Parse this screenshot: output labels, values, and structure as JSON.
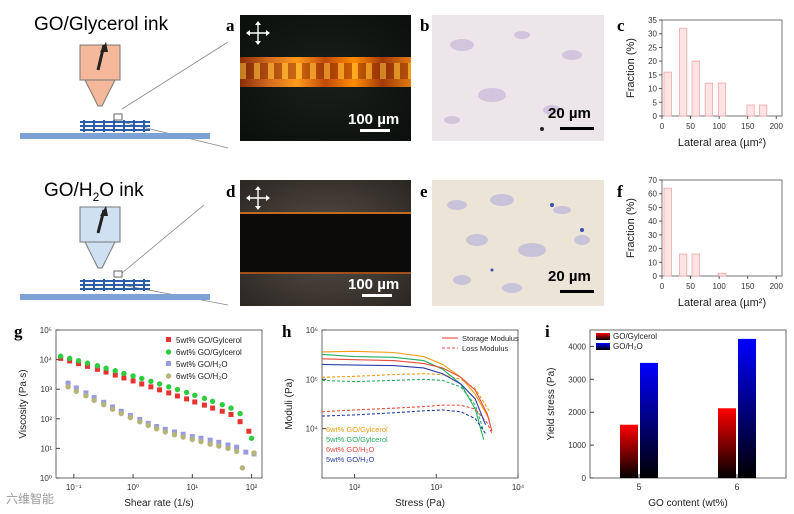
{
  "panels": {
    "a": {
      "letter": "a",
      "scale": "100 µm"
    },
    "b": {
      "letter": "b",
      "scale": "20 µm"
    },
    "c": {
      "letter": "c"
    },
    "d": {
      "letter": "d",
      "scale": "100 µm"
    },
    "e": {
      "letter": "e",
      "scale": "20 µm"
    },
    "f": {
      "letter": "f"
    },
    "g": {
      "letter": "g"
    },
    "h": {
      "letter": "h"
    },
    "i": {
      "letter": "i"
    }
  },
  "ink_labels": {
    "glycerol": "GO/Glycerol ink",
    "water_pre": "GO/H",
    "water_sub": "2",
    "water_post": "O ink"
  },
  "watermark": "六维智能",
  "chart_data": [
    {
      "id": "c",
      "type": "bar",
      "xlabel": "Lateral area (µm²)",
      "ylabel": "Fraction (%)",
      "x": [
        10,
        37,
        59,
        82,
        105,
        155,
        177
      ],
      "values": [
        16,
        32,
        20,
        12,
        12,
        4,
        4
      ],
      "xlim": [
        0,
        210
      ],
      "ylim": [
        0,
        35
      ],
      "xticks": [
        0,
        50,
        100,
        150,
        200
      ],
      "yticks": [
        0,
        5,
        10,
        15,
        20,
        25,
        30,
        35
      ]
    },
    {
      "id": "f",
      "type": "bar",
      "xlabel": "Lateral area (µm²)",
      "ylabel": "Fraction (%)",
      "x": [
        10,
        37,
        59,
        105
      ],
      "values": [
        64,
        16,
        16,
        2
      ],
      "xlim": [
        0,
        210
      ],
      "ylim": [
        0,
        70
      ],
      "xticks": [
        0,
        50,
        100,
        150,
        200
      ],
      "yticks": [
        0,
        10,
        20,
        30,
        40,
        50,
        60,
        70
      ]
    },
    {
      "id": "g",
      "type": "scatter",
      "xlabel": "Shear rate (1/s)",
      "ylabel": "Viscosity (Pa·s)",
      "xscale": "log",
      "yscale": "log",
      "xlim": [
        0.05,
        150
      ],
      "ylim": [
        1,
        100000
      ],
      "xticks": [
        0.1,
        1,
        10,
        100
      ],
      "xticklabels": [
        "10⁻¹",
        "10⁰",
        "10¹",
        "10²"
      ],
      "yticks": [
        1,
        10,
        100,
        1000,
        10000,
        100000
      ],
      "yticklabels": [
        "10⁰",
        "10¹",
        "10²",
        "10³",
        "10⁴",
        "10⁵"
      ],
      "series": [
        {
          "name": "5wt% GO/Gylcerol",
          "color": "#e3342f",
          "marker": "square",
          "x": [
            0.06,
            0.085,
            0.12,
            0.17,
            0.25,
            0.35,
            0.5,
            0.7,
            1,
            1.4,
            2,
            2.8,
            4,
            5.6,
            8,
            11,
            16,
            22,
            32,
            45,
            64,
            90
          ],
          "y": [
            11000,
            9000,
            7300,
            5900,
            4700,
            3800,
            3000,
            2400,
            1900,
            1500,
            1200,
            950,
            750,
            590,
            470,
            370,
            290,
            230,
            180,
            140,
            80,
            38
          ]
        },
        {
          "name": "6wt% GO/Gylcerol",
          "color": "#2ecc40",
          "marker": "circle",
          "x": [
            0.06,
            0.085,
            0.12,
            0.17,
            0.25,
            0.35,
            0.5,
            0.7,
            1,
            1.4,
            2,
            2.8,
            4,
            5.6,
            8,
            11,
            16,
            22,
            32,
            45,
            64,
            100
          ],
          "y": [
            13000,
            11000,
            9200,
            7600,
            6200,
            5100,
            4200,
            3400,
            2800,
            2300,
            1850,
            1500,
            1200,
            970,
            780,
            620,
            490,
            390,
            300,
            230,
            150,
            22
          ]
        },
        {
          "name": "5wt% GO/H₂O",
          "color": "#9a9ae0",
          "marker": "square",
          "x": [
            0.08,
            0.11,
            0.16,
            0.22,
            0.32,
            0.45,
            0.63,
            0.9,
            1.3,
            1.8,
            2.5,
            3.5,
            5,
            7,
            10,
            14,
            20,
            28,
            40,
            56,
            80,
            110
          ],
          "y": [
            1600,
            1100,
            750,
            520,
            360,
            250,
            180,
            130,
            95,
            70,
            55,
            44,
            36,
            30,
            25,
            22,
            19,
            16,
            13,
            11,
            7.5,
            6.5
          ]
        },
        {
          "name": "6wt% GO/H₂O",
          "color": "#b5b57a",
          "marker": "circle",
          "x": [
            0.08,
            0.11,
            0.16,
            0.22,
            0.32,
            0.45,
            0.63,
            0.9,
            1.3,
            1.8,
            2.5,
            3.5,
            5,
            7,
            10,
            14,
            20,
            28,
            40,
            56,
            70,
            110
          ],
          "y": [
            1200,
            850,
            600,
            420,
            300,
            210,
            150,
            110,
            80,
            60,
            46,
            36,
            29,
            24,
            20,
            17,
            14,
            12,
            10,
            8,
            2.2,
            7
          ]
        }
      ]
    },
    {
      "id": "h",
      "type": "line",
      "xlabel": "Stress (Pa)",
      "ylabel": "Moduli (Pa)",
      "xscale": "log",
      "yscale": "log",
      "xlim": [
        40,
        10000
      ],
      "ylim": [
        1000,
        1000000
      ],
      "xticks": [
        100,
        1000,
        10000
      ],
      "xticklabels": [
        "10²",
        "10³",
        "10⁴"
      ],
      "yticks": [
        10000,
        100000,
        1000000
      ],
      "yticklabels": [
        "10⁴",
        "10⁵",
        "10⁶"
      ],
      "legend_top": [
        {
          "label": "Storage Modulus",
          "style": "solid"
        },
        {
          "label": "Loss Modulus",
          "style": "dashed"
        }
      ],
      "series": [
        {
          "name": "6wt% GO/Gylcerol",
          "color": "#f39c12",
          "G1": [
            [
              40,
              360000
            ],
            [
              100,
              370000
            ],
            [
              300,
              350000
            ],
            [
              700,
              290000
            ],
            [
              1200,
              200000
            ],
            [
              2000,
              110000
            ],
            [
              3000,
              50000
            ],
            [
              4500,
              15000
            ]
          ],
          "G2": [
            [
              40,
              110000
            ],
            [
              100,
              115000
            ],
            [
              300,
              125000
            ],
            [
              700,
              130000
            ],
            [
              1200,
              125000
            ],
            [
              2000,
              100000
            ],
            [
              3000,
              65000
            ],
            [
              4500,
              22000
            ]
          ]
        },
        {
          "name": "5wt% GO/Gylcerol",
          "color": "#27ae60",
          "G1": [
            [
              40,
              320000
            ],
            [
              100,
              290000
            ],
            [
              300,
              280000
            ],
            [
              700,
              240000
            ],
            [
              1200,
              160000
            ],
            [
              2000,
              80000
            ],
            [
              3000,
              25000
            ],
            [
              3800,
              6000
            ]
          ],
          "G2": [
            [
              40,
              95000
            ],
            [
              100,
              90000
            ],
            [
              300,
              95000
            ],
            [
              700,
              100000
            ],
            [
              1200,
              95000
            ],
            [
              2000,
              70000
            ],
            [
              3000,
              30000
            ],
            [
              3800,
              9000
            ]
          ]
        },
        {
          "name": "6wt% GO/H₂O",
          "color": "#e74c3c",
          "G1": [
            [
              40,
              260000
            ],
            [
              100,
              250000
            ],
            [
              300,
              240000
            ],
            [
              700,
              210000
            ],
            [
              1200,
              170000
            ],
            [
              2000,
              110000
            ],
            [
              3000,
              60000
            ],
            [
              4200,
              20000
            ],
            [
              4800,
              9000
            ]
          ],
          "G2": [
            [
              40,
              22000
            ],
            [
              100,
              24000
            ],
            [
              300,
              26000
            ],
            [
              700,
              28000
            ],
            [
              1200,
              30000
            ],
            [
              2000,
              30000
            ],
            [
              3000,
              25000
            ],
            [
              4200,
              13000
            ],
            [
              4800,
              8000
            ]
          ]
        },
        {
          "name": "5wt% GO/H₂O",
          "color": "#2c3ea8",
          "G1": [
            [
              40,
              200000
            ],
            [
              100,
              195000
            ],
            [
              300,
              190000
            ],
            [
              700,
              170000
            ],
            [
              1200,
              130000
            ],
            [
              2000,
              80000
            ],
            [
              3000,
              40000
            ],
            [
              4000,
              12000
            ]
          ],
          "G2": [
            [
              40,
              18000
            ],
            [
              100,
              19000
            ],
            [
              300,
              21000
            ],
            [
              700,
              23000
            ],
            [
              1200,
              24000
            ],
            [
              2000,
              22000
            ],
            [
              3000,
              16000
            ],
            [
              4000,
              8000
            ]
          ]
        }
      ]
    },
    {
      "id": "i",
      "type": "bar",
      "xlabel": "GO content (wt%)",
      "ylabel": "Yield stress (Pa)",
      "categories": [
        "5",
        "6"
      ],
      "ylim": [
        0,
        4500
      ],
      "yticks": [
        0,
        1000,
        2000,
        3000,
        4000
      ],
      "series": [
        {
          "name": "GO/Gylcerol",
          "color": "#ff0000",
          "values": [
            1620,
            2120
          ]
        },
        {
          "name": "GO/H₂O",
          "color": "#0000ff",
          "values": [
            3500,
            4230
          ]
        }
      ]
    }
  ]
}
